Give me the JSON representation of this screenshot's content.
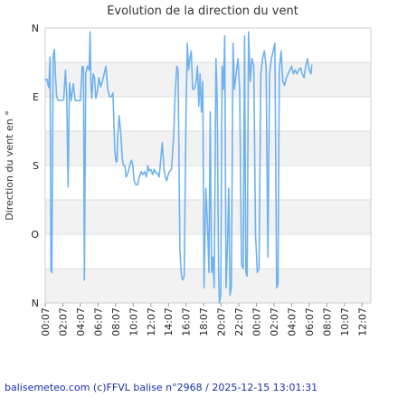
{
  "chart_data": {
    "type": "line",
    "title": "Evolution de la direction du vent",
    "ylabel": "Direction du vent en °",
    "y_ticks": [
      {
        "label": "N",
        "value": 360
      },
      {
        "label": "E",
        "value": 270
      },
      {
        "label": "S",
        "value": 180
      },
      {
        "label": "O",
        "value": 90
      },
      {
        "label": "N",
        "value": 0
      }
    ],
    "ylim": [
      0,
      360
    ],
    "x_ticks": [
      "00:07",
      "02:07",
      "04:07",
      "06:07",
      "08:07",
      "10:07",
      "12:07",
      "14:07",
      "16:07",
      "18:07",
      "20:07",
      "22:07",
      "00:07",
      "02:07",
      "04:07",
      "06:07",
      "08:07",
      "10:07",
      "12:07"
    ],
    "x_unit": "hours since 00:07",
    "xlim": [
      0,
      37
    ],
    "grid": true,
    "series": [
      {
        "name": "",
        "color": "#6fb1f0",
        "points": [
          [
            0.0,
            292
          ],
          [
            0.2,
            293
          ],
          [
            0.4,
            282
          ],
          [
            0.55,
            322
          ],
          [
            0.65,
            42
          ],
          [
            0.75,
            40
          ],
          [
            0.9,
            325
          ],
          [
            1.05,
            332
          ],
          [
            1.15,
            300
          ],
          [
            1.3,
            270
          ],
          [
            1.5,
            265
          ],
          [
            1.8,
            265
          ],
          [
            2.1,
            266
          ],
          [
            2.3,
            305
          ],
          [
            2.45,
            270
          ],
          [
            2.6,
            152
          ],
          [
            2.75,
            288
          ],
          [
            2.95,
            265
          ],
          [
            3.2,
            287
          ],
          [
            3.4,
            265
          ],
          [
            3.6,
            265
          ],
          [
            3.8,
            265
          ],
          [
            4.0,
            265
          ],
          [
            4.2,
            310
          ],
          [
            4.35,
            308
          ],
          [
            4.45,
            30
          ],
          [
            4.6,
            300
          ],
          [
            4.8,
            310
          ],
          [
            5.0,
            305
          ],
          [
            5.1,
            355
          ],
          [
            5.2,
            283
          ],
          [
            5.3,
            268
          ],
          [
            5.45,
            300
          ],
          [
            5.6,
            295
          ],
          [
            5.75,
            268
          ],
          [
            5.9,
            275
          ],
          [
            6.1,
            295
          ],
          [
            6.3,
            283
          ],
          [
            6.5,
            290
          ],
          [
            6.7,
            300
          ],
          [
            6.9,
            310
          ],
          [
            7.1,
            280
          ],
          [
            7.3,
            270
          ],
          [
            7.5,
            270
          ],
          [
            7.7,
            275
          ],
          [
            7.9,
            200
          ],
          [
            8.05,
            185
          ],
          [
            8.15,
            185
          ],
          [
            8.25,
            220
          ],
          [
            8.4,
            245
          ],
          [
            8.6,
            220
          ],
          [
            8.75,
            190
          ],
          [
            8.9,
            180
          ],
          [
            9.05,
            180
          ],
          [
            9.2,
            165
          ],
          [
            9.4,
            170
          ],
          [
            9.6,
            180
          ],
          [
            9.8,
            187
          ],
          [
            9.95,
            180
          ],
          [
            10.1,
            160
          ],
          [
            10.3,
            155
          ],
          [
            10.5,
            155
          ],
          [
            10.7,
            165
          ],
          [
            10.9,
            172
          ],
          [
            11.1,
            168
          ],
          [
            11.3,
            172
          ],
          [
            11.5,
            165
          ],
          [
            11.65,
            180
          ],
          [
            11.8,
            173
          ],
          [
            12.0,
            175
          ],
          [
            12.2,
            168
          ],
          [
            12.4,
            175
          ],
          [
            12.55,
            170
          ],
          [
            12.75,
            170
          ],
          [
            12.95,
            165
          ],
          [
            13.1,
            185
          ],
          [
            13.3,
            210
          ],
          [
            13.5,
            175
          ],
          [
            13.65,
            165
          ],
          [
            13.8,
            160
          ],
          [
            13.95,
            167
          ],
          [
            14.1,
            172
          ],
          [
            14.35,
            175
          ],
          [
            14.6,
            220
          ],
          [
            14.75,
            270
          ],
          [
            14.95,
            310
          ],
          [
            15.1,
            305
          ],
          [
            15.3,
            70
          ],
          [
            15.45,
            40
          ],
          [
            15.6,
            30
          ],
          [
            15.8,
            35
          ],
          [
            16.0,
            250
          ],
          [
            16.15,
            340
          ],
          [
            16.3,
            305
          ],
          [
            16.45,
            322
          ],
          [
            16.6,
            330
          ],
          [
            16.75,
            280
          ],
          [
            16.95,
            280
          ],
          [
            17.15,
            290
          ],
          [
            17.3,
            310
          ],
          [
            17.45,
            258
          ],
          [
            17.6,
            300
          ],
          [
            17.75,
            250
          ],
          [
            17.9,
            290
          ],
          [
            18.05,
            20
          ],
          [
            18.25,
            150
          ],
          [
            18.45,
            100
          ],
          [
            18.6,
            40
          ],
          [
            18.75,
            250
          ],
          [
            18.9,
            40
          ],
          [
            19.05,
            60
          ],
          [
            19.2,
            20
          ],
          [
            19.4,
            320
          ],
          [
            19.55,
            260
          ],
          [
            19.7,
            40
          ],
          [
            19.8,
            0
          ],
          [
            19.95,
            10
          ],
          [
            20.1,
            310
          ],
          [
            20.25,
            280
          ],
          [
            20.4,
            350
          ],
          [
            20.55,
            20
          ],
          [
            20.7,
            70
          ],
          [
            20.85,
            150
          ],
          [
            21.0,
            10
          ],
          [
            21.15,
            20
          ],
          [
            21.35,
            340
          ],
          [
            21.5,
            280
          ],
          [
            21.7,
            300
          ],
          [
            21.9,
            320
          ],
          [
            22.1,
            280
          ],
          [
            22.3,
            50
          ],
          [
            22.5,
            45
          ],
          [
            22.65,
            350
          ],
          [
            22.8,
            40
          ],
          [
            22.95,
            35
          ],
          [
            23.1,
            355
          ],
          [
            23.3,
            290
          ],
          [
            23.5,
            320
          ],
          [
            23.7,
            310
          ],
          [
            23.9,
            90
          ],
          [
            24.1,
            40
          ],
          [
            24.3,
            45
          ],
          [
            24.5,
            300
          ],
          [
            24.7,
            320
          ],
          [
            24.9,
            330
          ],
          [
            25.1,
            310
          ],
          [
            25.3,
            60
          ],
          [
            25.5,
            300
          ],
          [
            25.7,
            320
          ],
          [
            25.9,
            330
          ],
          [
            26.1,
            340
          ],
          [
            26.3,
            20
          ],
          [
            26.45,
            25
          ],
          [
            26.6,
            305
          ],
          [
            26.8,
            330
          ],
          [
            27.0,
            290
          ],
          [
            27.2,
            285
          ],
          [
            27.4,
            295
          ],
          [
            27.6,
            300
          ],
          [
            27.8,
            305
          ],
          [
            28.0,
            310
          ],
          [
            28.2,
            300
          ],
          [
            28.4,
            305
          ],
          [
            28.6,
            300
          ],
          [
            28.8,
            305
          ],
          [
            29.0,
            308
          ],
          [
            29.2,
            300
          ],
          [
            29.4,
            295
          ],
          [
            29.6,
            310
          ],
          [
            29.8,
            320
          ],
          [
            30.0,
            305
          ],
          [
            30.2,
            300
          ],
          [
            30.3,
            312
          ]
        ]
      }
    ]
  },
  "footer": "balisemeteo.com (c)FFVL balise n°2968 / 2025-12-15 13:01:31"
}
